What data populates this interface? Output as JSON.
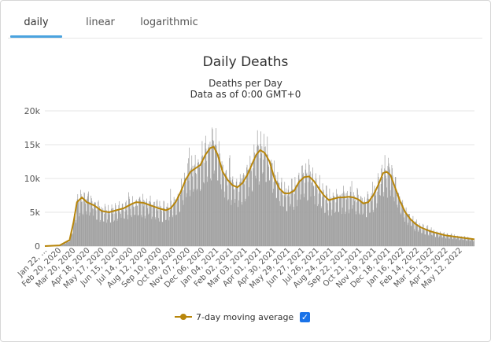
{
  "tabs": [
    {
      "label": "daily",
      "active": true
    },
    {
      "label": "linear",
      "active": false
    },
    {
      "label": "logarithmic",
      "active": false
    }
  ],
  "colors": {
    "bars": "#a0a0a0",
    "moving_average": "#b8860b",
    "tab_accent": "#4aa3df",
    "checkbox": "#1a73e8"
  },
  "chart_data": {
    "type": "bar",
    "title": "Daily Deaths",
    "subtitle": "Deaths per Day",
    "subtitle2": "Data as of 0:00 GMT+0",
    "xlabel": "",
    "ylabel": "",
    "ylim": [
      0,
      20000
    ],
    "y_ticks": [
      0,
      5000,
      10000,
      15000,
      20000
    ],
    "y_tick_labels": [
      "0",
      "5k",
      "10k",
      "15k",
      "20k"
    ],
    "x_tick_labels": [
      "Jan 22, ...",
      "Feb 20, 2020",
      "Mar 20, 2020",
      "Apr 18, 2020",
      "May 17, 2020",
      "Jun 15, 2020",
      "Jul 14, 2020",
      "Aug 12, 2020",
      "Sep 10, 2020",
      "Oct 09, 2020",
      "Nov 07, 2020",
      "Dec 06, 2020",
      "Jan 04, 2021",
      "Feb 02, 2021",
      "Mar 03, 2021",
      "Apr 01, 2021",
      "Apr 30, 2021",
      "May 29, 2021",
      "Jun 27, 2021",
      "Jul 26, 2021",
      "Aug 24, 2021",
      "Sep 22, 2021",
      "Oct 21, 2021",
      "Nov 19, 2021",
      "Dec 18, 2021",
      "Jan 16, 2022",
      "Feb 14, 2022",
      "Mar 15, 2022",
      "Apr 13, 2022",
      "May 12, 2022"
    ],
    "x_domain": [
      0,
      870
    ],
    "x_tick_step_days": 29,
    "moving_average_points": [
      [
        0,
        0
      ],
      [
        30,
        100
      ],
      [
        50,
        900
      ],
      [
        58,
        3500
      ],
      [
        65,
        6500
      ],
      [
        75,
        7200
      ],
      [
        85,
        6500
      ],
      [
        100,
        6000
      ],
      [
        115,
        5200
      ],
      [
        130,
        5000
      ],
      [
        145,
        5300
      ],
      [
        160,
        5600
      ],
      [
        175,
        6200
      ],
      [
        185,
        6500
      ],
      [
        200,
        6400
      ],
      [
        215,
        6000
      ],
      [
        230,
        5600
      ],
      [
        245,
        5300
      ],
      [
        255,
        5600
      ],
      [
        265,
        6500
      ],
      [
        275,
        8000
      ],
      [
        285,
        9800
      ],
      [
        295,
        11000
      ],
      [
        305,
        11500
      ],
      [
        315,
        12000
      ],
      [
        325,
        13500
      ],
      [
        335,
        14500
      ],
      [
        342,
        14700
      ],
      [
        350,
        13500
      ],
      [
        360,
        11000
      ],
      [
        370,
        9800
      ],
      [
        380,
        9000
      ],
      [
        390,
        8700
      ],
      [
        400,
        9300
      ],
      [
        410,
        10500
      ],
      [
        420,
        12200
      ],
      [
        428,
        13500
      ],
      [
        436,
        14200
      ],
      [
        445,
        13800
      ],
      [
        455,
        12500
      ],
      [
        465,
        10000
      ],
      [
        475,
        8500
      ],
      [
        485,
        7800
      ],
      [
        495,
        7800
      ],
      [
        505,
        8200
      ],
      [
        515,
        9500
      ],
      [
        525,
        10200
      ],
      [
        535,
        10300
      ],
      [
        545,
        9600
      ],
      [
        555,
        8500
      ],
      [
        565,
        7500
      ],
      [
        575,
        6800
      ],
      [
        585,
        7000
      ],
      [
        595,
        7200
      ],
      [
        605,
        7200
      ],
      [
        615,
        7300
      ],
      [
        625,
        7200
      ],
      [
        635,
        6900
      ],
      [
        645,
        6300
      ],
      [
        655,
        6500
      ],
      [
        665,
        7500
      ],
      [
        675,
        9000
      ],
      [
        685,
        10800
      ],
      [
        692,
        11000
      ],
      [
        700,
        10500
      ],
      [
        710,
        8500
      ],
      [
        720,
        6500
      ],
      [
        730,
        5000
      ],
      [
        740,
        4000
      ],
      [
        750,
        3300
      ],
      [
        760,
        2800
      ],
      [
        770,
        2500
      ],
      [
        780,
        2200
      ],
      [
        790,
        2000
      ],
      [
        800,
        1800
      ],
      [
        810,
        1600
      ],
      [
        820,
        1500
      ],
      [
        830,
        1400
      ],
      [
        840,
        1300
      ],
      [
        850,
        1200
      ],
      [
        860,
        1100
      ],
      [
        870,
        1000
      ]
    ],
    "legend": [
      {
        "label": "7-day moving average",
        "checked": true
      }
    ]
  }
}
